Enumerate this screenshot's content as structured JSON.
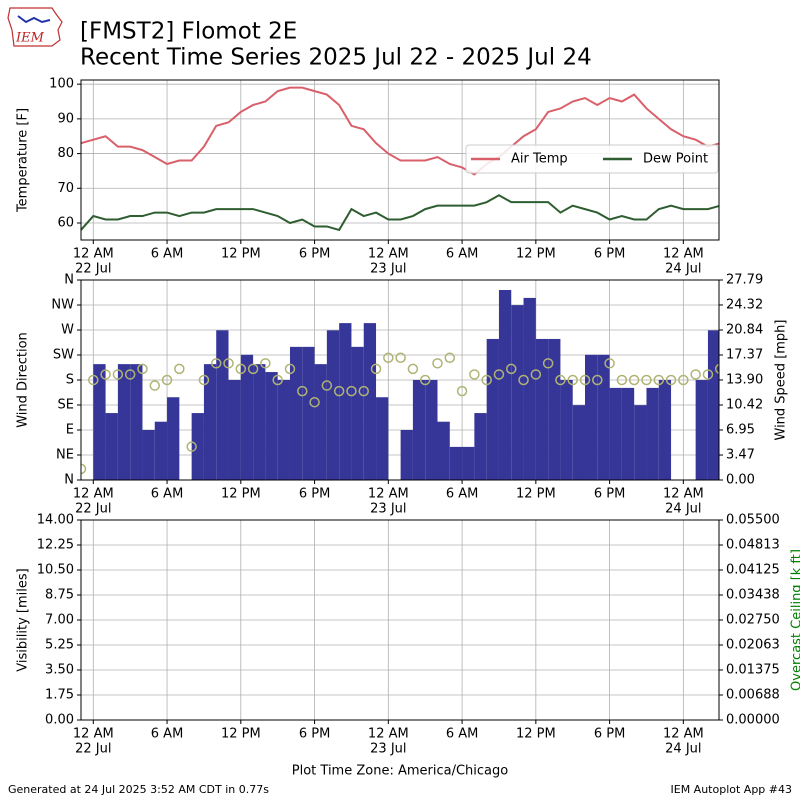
{
  "header": {
    "logo_text": "IEM",
    "title": "[FMST2] Flomot 2E",
    "subtitle": "Recent Time Series 2025 Jul 22 - 2025 Jul 24"
  },
  "footer": {
    "left": "Generated at 24 Jul 2025 3:52 AM CDT in 0.77s",
    "right": "IEM Autoplot App #43"
  },
  "chart_data": [
    {
      "type": "line",
      "x": [
        -1,
        0,
        1,
        2,
        3,
        4,
        5,
        6,
        7,
        8,
        9,
        10,
        11,
        12,
        13,
        14,
        15,
        16,
        17,
        18,
        19,
        20,
        21,
        22,
        23,
        24,
        25,
        26,
        27,
        28,
        29,
        30,
        31,
        32,
        33,
        34,
        35,
        36,
        37,
        38,
        39,
        40,
        41,
        42,
        43,
        44,
        45,
        46,
        47,
        48,
        49,
        50,
        51
      ],
      "xlim": [
        -1,
        50.9
      ],
      "xticks": [
        {
          "value": 0,
          "label": "12 AM"
        },
        {
          "value": 6,
          "label": "6 AM"
        },
        {
          "value": 12,
          "label": "12 PM"
        },
        {
          "value": 18,
          "label": "6 PM"
        },
        {
          "value": 24,
          "label": "12 AM"
        },
        {
          "value": 30,
          "label": "6 AM"
        },
        {
          "value": 36,
          "label": "12 PM"
        },
        {
          "value": 42,
          "label": "6 PM"
        },
        {
          "value": 48,
          "label": "12 AM"
        }
      ],
      "xdates": [
        {
          "value": 0,
          "label": "22 Jul"
        },
        {
          "value": 24,
          "label": "23 Jul"
        },
        {
          "value": 48,
          "label": "24 Jul"
        }
      ],
      "ylabel": "Temperature [F]",
      "ylim": [
        55.1,
        101.2
      ],
      "yticks": [
        60,
        70,
        80,
        90,
        100
      ],
      "grid": true,
      "legend": "center right",
      "series": [
        {
          "name": "Air Temp",
          "color": "#d9606a",
          "values": [
            83,
            84,
            85,
            82,
            82,
            81,
            79,
            77,
            78,
            78,
            82,
            88,
            89,
            92,
            94,
            95,
            98,
            99,
            99,
            98,
            97,
            94,
            88,
            87,
            83,
            80,
            78,
            78,
            78,
            79,
            77,
            76,
            74,
            77,
            79,
            82,
            85,
            87,
            92,
            93,
            95,
            96,
            94,
            96,
            95,
            97,
            93,
            90,
            87,
            85,
            84,
            82,
            83
          ]
        },
        {
          "name": "Dew Point",
          "color": "#2e5e30",
          "values": [
            58,
            62,
            61,
            61,
            62,
            62,
            63,
            63,
            62,
            63,
            63,
            64,
            64,
            64,
            64,
            63,
            62,
            60,
            61,
            59,
            59,
            58,
            64,
            62,
            63,
            61,
            61,
            62,
            64,
            65,
            65,
            65,
            65,
            66,
            68,
            66,
            66,
            66,
            66,
            63,
            65,
            64,
            63,
            61,
            62,
            61,
            61,
            64,
            65,
            64,
            64,
            64,
            65
          ]
        }
      ]
    },
    {
      "type": "wind",
      "x": [
        -1,
        0,
        1,
        2,
        3,
        4,
        5,
        6,
        7,
        8,
        9,
        10,
        11,
        12,
        13,
        14,
        15,
        16,
        17,
        18,
        19,
        20,
        21,
        22,
        23,
        24,
        25,
        26,
        27,
        28,
        29,
        30,
        31,
        32,
        33,
        34,
        35,
        36,
        37,
        38,
        39,
        40,
        41,
        42,
        43,
        44,
        45,
        46,
        47,
        48,
        49,
        50,
        51
      ],
      "xlim": [
        -1,
        50.9
      ],
      "xticks": [
        {
          "value": 0,
          "label": "12 AM"
        },
        {
          "value": 6,
          "label": "6 AM"
        },
        {
          "value": 12,
          "label": "12 PM"
        },
        {
          "value": 18,
          "label": "6 PM"
        },
        {
          "value": 24,
          "label": "12 AM"
        },
        {
          "value": 30,
          "label": "6 AM"
        },
        {
          "value": 36,
          "label": "12 PM"
        },
        {
          "value": 42,
          "label": "6 PM"
        },
        {
          "value": 48,
          "label": "12 AM"
        }
      ],
      "xdates": [
        {
          "value": 0,
          "label": "22 Jul"
        },
        {
          "value": 24,
          "label": "23 Jul"
        },
        {
          "value": 48,
          "label": "24 Jul"
        }
      ],
      "ylabel": "Wind Direction",
      "ylim": [
        0,
        360
      ],
      "yticks": [
        {
          "value": 0,
          "label": "N"
        },
        {
          "value": 45,
          "label": "NE"
        },
        {
          "value": 90,
          "label": "E"
        },
        {
          "value": 135,
          "label": "SE"
        },
        {
          "value": 180,
          "label": "S"
        },
        {
          "value": 225,
          "label": "SW"
        },
        {
          "value": 270,
          "label": "W"
        },
        {
          "value": 315,
          "label": "NW"
        },
        {
          "value": 360,
          "label": "N"
        }
      ],
      "y2label": "Wind Speed [mph]",
      "y2lim": [
        0,
        27.79
      ],
      "y2ticks": [
        {
          "value": 0,
          "label": "0.00"
        },
        3.47,
        6.95,
        10.42,
        {
          "value": 13.9,
          "label": "13.90"
        },
        17.37,
        20.84,
        24.32,
        27.79
      ],
      "grid": true,
      "series": [
        {
          "type": "bar",
          "axis": "y2",
          "color": "#363699",
          "values": [
            0,
            16.1,
            9.3,
            16.1,
            16.1,
            6.95,
            8.1,
            11.5,
            0,
            9.3,
            16.1,
            20.8,
            13.9,
            17.4,
            16.1,
            15.0,
            13.9,
            18.5,
            18.5,
            16.1,
            20.8,
            21.8,
            18.5,
            21.8,
            11.5,
            0,
            6.95,
            13.9,
            13.9,
            8.1,
            4.6,
            4.6,
            9.3,
            19.6,
            26.4,
            24.3,
            25.3,
            19.6,
            19.6,
            13.9,
            10.4,
            17.4,
            17.4,
            12.8,
            12.8,
            10.4,
            12.8,
            13.9,
            0,
            0,
            13.9,
            20.8,
            0
          ]
        },
        {
          "type": "scatter",
          "axis": "y",
          "color": "#b0b374",
          "values": [
            20,
            180,
            190,
            190,
            190,
            200,
            170,
            180,
            200,
            60,
            180,
            210,
            210,
            200,
            200,
            210,
            180,
            200,
            160,
            140,
            170,
            160,
            160,
            160,
            200,
            220,
            220,
            200,
            180,
            210,
            220,
            160,
            190,
            180,
            190,
            200,
            180,
            190,
            210,
            180,
            180,
            180,
            180,
            210,
            180,
            180,
            180,
            180,
            180,
            180,
            190,
            190,
            200
          ]
        }
      ]
    },
    {
      "type": "line",
      "xlim": [
        -1,
        50.9
      ],
      "xticks": [
        {
          "value": 0,
          "label": "12 AM"
        },
        {
          "value": 6,
          "label": "6 AM"
        },
        {
          "value": 12,
          "label": "12 PM"
        },
        {
          "value": 18,
          "label": "6 PM"
        },
        {
          "value": 24,
          "label": "12 AM"
        },
        {
          "value": 30,
          "label": "6 AM"
        },
        {
          "value": 36,
          "label": "12 PM"
        },
        {
          "value": 42,
          "label": "6 PM"
        },
        {
          "value": 48,
          "label": "12 AM"
        }
      ],
      "xdates": [
        {
          "value": 0,
          "label": "22 Jul"
        },
        {
          "value": 24,
          "label": "23 Jul"
        },
        {
          "value": 48,
          "label": "24 Jul"
        }
      ],
      "xlabel": "Plot Time Zone: America/Chicago",
      "ylabel": "Visibility [miles]",
      "ylim": [
        0,
        14
      ],
      "yticks": [
        {
          "value": 0,
          "label": "0.00"
        },
        1.75,
        {
          "value": 3.5,
          "label": "3.50"
        },
        5.25,
        {
          "value": 7,
          "label": "7.00"
        },
        8.75,
        {
          "value": 10.5,
          "label": "10.50"
        },
        12.25,
        {
          "value": 14,
          "label": "14.00"
        }
      ],
      "y2label": "Overcast Ceiling [k ft]",
      "y2label_color": "green",
      "y2lim": [
        0,
        0.055
      ],
      "y2ticks": [
        {
          "value": 0,
          "label": "0.00000"
        },
        {
          "value": 0.006875,
          "label": "0.00688"
        },
        0.01375,
        {
          "value": 0.020625,
          "label": "0.02063"
        },
        {
          "value": 0.0275,
          "label": "0.02750"
        },
        {
          "value": 0.034375,
          "label": "0.03438"
        },
        0.04125,
        {
          "value": 0.048125,
          "label": "0.04813"
        },
        {
          "value": 0.055,
          "label": "0.05500"
        }
      ],
      "grid": true
    }
  ]
}
